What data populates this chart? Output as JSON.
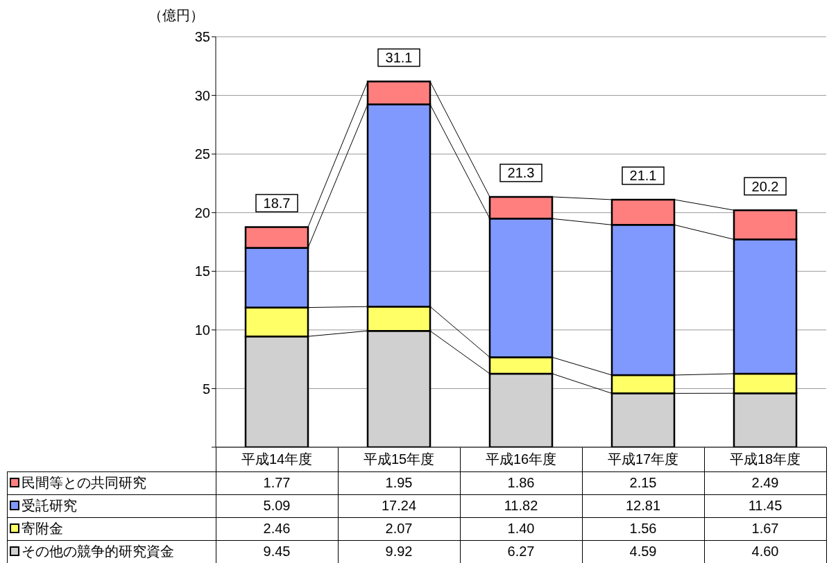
{
  "chart_data": {
    "type": "bar",
    "stacked": true,
    "ylabel": "（億円）",
    "categories": [
      "平成14年度",
      "平成15年度",
      "平成16年度",
      "平成17年度",
      "平成18年度"
    ],
    "series": [
      {
        "name": "その他の競争的研究資金",
        "color": "#d0d0d0",
        "values": [
          9.45,
          9.92,
          6.27,
          4.59,
          4.6
        ],
        "value_labels": [
          "9.45",
          "9.92",
          "6.27",
          "4.59",
          "4.60"
        ]
      },
      {
        "name": "寄附金",
        "color": "#ffff66",
        "values": [
          2.46,
          2.07,
          1.4,
          1.56,
          1.67
        ],
        "value_labels": [
          "2.46",
          "2.07",
          "1.40",
          "1.56",
          "1.67"
        ]
      },
      {
        "name": "受託研究",
        "color": "#7f99ff",
        "values": [
          5.09,
          17.24,
          11.82,
          12.81,
          11.45
        ],
        "value_labels": [
          "5.09",
          "17.24",
          "11.82",
          "12.81",
          "11.45"
        ]
      },
      {
        "name": "民間等との共同研究",
        "color": "#ff7f7f",
        "values": [
          1.77,
          1.95,
          1.86,
          2.15,
          2.49
        ],
        "value_labels": [
          "1.77",
          "1.95",
          "1.86",
          "2.15",
          "2.49"
        ]
      }
    ],
    "totals": [
      "18.7",
      "31.1",
      "21.3",
      "21.1",
      "20.2"
    ],
    "ylim": [
      0,
      35
    ],
    "yticks": [
      {
        "value": 0,
        "label": null
      },
      5,
      10,
      15,
      20,
      25,
      30,
      35
    ],
    "grid": "y",
    "legend": "bottom left"
  }
}
